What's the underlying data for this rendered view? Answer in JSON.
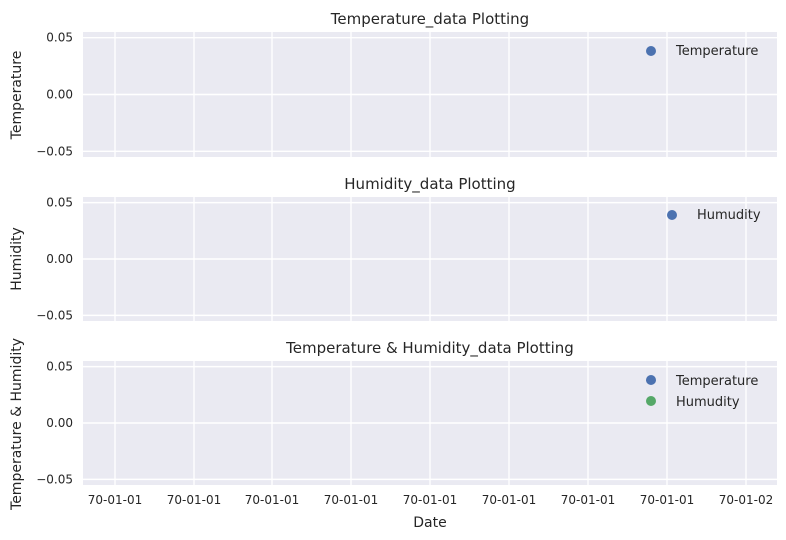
{
  "chart_data": [
    {
      "type": "scatter",
      "title": "Temperature_data Plotting",
      "xlabel": "",
      "ylabel": "Temperature",
      "ylim": [
        -0.055,
        0.055
      ],
      "yticks": [
        "0.05",
        "0.00",
        "−0.05"
      ],
      "ytick_values": [
        0.05,
        0.0,
        -0.05
      ],
      "xtick_labels": [],
      "grid": true,
      "legend_position": "upper-right",
      "series": [
        {
          "name": "Temperature",
          "color": "#4c72b0",
          "x": [],
          "y": []
        }
      ]
    },
    {
      "type": "scatter",
      "title": "Humidity_data Plotting",
      "xlabel": "",
      "ylabel": "Humidity",
      "ylim": [
        -0.055,
        0.055
      ],
      "yticks": [
        "0.05",
        "0.00",
        "−0.05"
      ],
      "ytick_values": [
        0.05,
        0.0,
        -0.05
      ],
      "xtick_labels": [],
      "grid": true,
      "legend_position": "upper-right",
      "series": [
        {
          "name": "Humudity",
          "color": "#4c72b0",
          "x": [],
          "y": []
        }
      ]
    },
    {
      "type": "scatter",
      "title": "Temperature & Humidity_data Plotting",
      "xlabel": "Date",
      "ylabel": "Temperature &  Humidity",
      "ylim": [
        -0.055,
        0.055
      ],
      "yticks": [
        "0.05",
        "0.00",
        "−0.05"
      ],
      "ytick_values": [
        0.05,
        0.0,
        -0.05
      ],
      "xtick_labels": [
        "70-01-01",
        "70-01-01",
        "70-01-01",
        "70-01-01",
        "70-01-01",
        "70-01-01",
        "70-01-01",
        "70-01-01",
        "70-01-02"
      ],
      "grid": true,
      "legend_position": "upper-right",
      "series": [
        {
          "name": "Temperature",
          "color": "#4c72b0",
          "x": [],
          "y": []
        },
        {
          "name": "Humudity",
          "color": "#55a868",
          "x": [],
          "y": []
        }
      ]
    }
  ],
  "colors": {
    "axes_bg": "#eaeaf2",
    "grid": "#ffffff",
    "text": "#262626"
  }
}
